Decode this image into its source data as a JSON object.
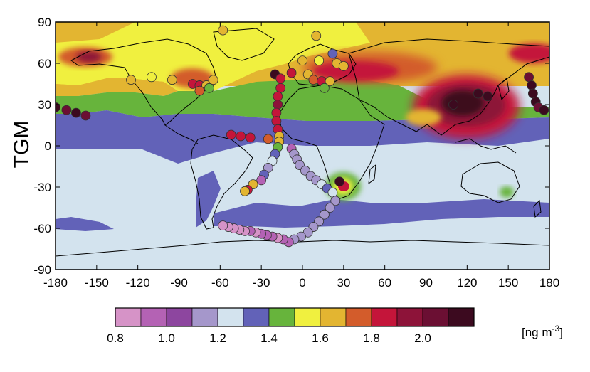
{
  "chart_data": {
    "type": "heatmap",
    "subtype": "global map of total gaseous mercury with observation overlay",
    "ylabel": "TGM",
    "units": "[ng m",
    "units_superscript": "-3",
    "units_suffix": "]",
    "xlim": [
      -180,
      180
    ],
    "ylim": [
      -90,
      90
    ],
    "x_ticks": [
      "-180",
      "-150",
      "-120",
      "-90",
      "-60",
      "-30",
      "0",
      "30",
      "60",
      "90",
      "120",
      "150",
      "180"
    ],
    "y_ticks": [
      "90",
      "60",
      "30",
      "0",
      "-30",
      "-60",
      "-90"
    ],
    "colorbar": {
      "min": 0.8,
      "step": 0.1,
      "colors": [
        "#d693c7",
        "#b462b4",
        "#8d469f",
        "#a597cb",
        "#d3e3ee",
        "#6262b8",
        "#67b43c",
        "#f0f03f",
        "#e3b531",
        "#d35c2b",
        "#c4153a",
        "#8d1339",
        "#6b0f33",
        "#3c0a1f"
      ],
      "tick_labels": [
        "0.8",
        "1.0",
        "1.2",
        "1.4",
        "1.6",
        "1.8",
        "2.0"
      ],
      "tick_values": [
        0.8,
        1.0,
        1.2,
        1.4,
        1.6,
        1.8,
        2.0
      ]
    },
    "observations": [
      {
        "lon": -58,
        "lat": 84,
        "v": 1.6
      },
      {
        "lon": 10,
        "lat": 80,
        "v": 1.6
      },
      {
        "lon": 22,
        "lat": 67,
        "v": 1.35
      },
      {
        "lon": 0,
        "lat": 62,
        "v": 1.65
      },
      {
        "lon": 12,
        "lat": 62,
        "v": 1.55
      },
      {
        "lon": 25,
        "lat": 60,
        "v": 1.7
      },
      {
        "lon": 30,
        "lat": 58,
        "v": 1.6
      },
      {
        "lon": -20,
        "lat": 52,
        "v": 2.15
      },
      {
        "lon": -8,
        "lat": 53,
        "v": 1.8
      },
      {
        "lon": 4,
        "lat": 52,
        "v": 1.7
      },
      {
        "lon": 8,
        "lat": 48,
        "v": 1.75
      },
      {
        "lon": 14,
        "lat": 47,
        "v": 1.9
      },
      {
        "lon": 20,
        "lat": 47,
        "v": 1.6
      },
      {
        "lon": 16,
        "lat": 42,
        "v": 1.5
      },
      {
        "lon": -125,
        "lat": 48,
        "v": 1.6
      },
      {
        "lon": -110,
        "lat": 50,
        "v": 1.55
      },
      {
        "lon": -95,
        "lat": 48,
        "v": 1.6
      },
      {
        "lon": -80,
        "lat": 45,
        "v": 1.85
      },
      {
        "lon": -75,
        "lat": 44,
        "v": 1.9
      },
      {
        "lon": -70,
        "lat": 44,
        "v": 1.7
      },
      {
        "lon": -65,
        "lat": 48,
        "v": 1.65
      },
      {
        "lon": -75,
        "lat": 40,
        "v": 1.75
      },
      {
        "lon": -68,
        "lat": 42,
        "v": 1.5
      },
      {
        "lon": -180,
        "lat": 28,
        "v": 2.1
      },
      {
        "lon": -172,
        "lat": 26,
        "v": 2.05
      },
      {
        "lon": -165,
        "lat": 24,
        "v": 2.1
      },
      {
        "lon": -158,
        "lat": 22,
        "v": 2.05
      },
      {
        "lon": -52,
        "lat": 8,
        "v": 1.9
      },
      {
        "lon": -45,
        "lat": 7,
        "v": 1.85
      },
      {
        "lon": -38,
        "lat": 6,
        "v": 1.8
      },
      {
        "lon": -25,
        "lat": 5,
        "v": 1.75
      },
      {
        "lon": -16,
        "lat": 49,
        "v": 1.9
      },
      {
        "lon": -16,
        "lat": 42,
        "v": 1.85
      },
      {
        "lon": -18,
        "lat": 36,
        "v": 1.9
      },
      {
        "lon": -18,
        "lat": 30,
        "v": 1.95
      },
      {
        "lon": -19,
        "lat": 24,
        "v": 1.9
      },
      {
        "lon": -19,
        "lat": 18,
        "v": 1.85
      },
      {
        "lon": -18,
        "lat": 12,
        "v": 1.8
      },
      {
        "lon": -17,
        "lat": 7,
        "v": 1.7
      },
      {
        "lon": -17,
        "lat": 3,
        "v": 1.6
      },
      {
        "lon": -18,
        "lat": -1,
        "v": 1.5
      },
      {
        "lon": -20,
        "lat": -6,
        "v": 1.4
      },
      {
        "lon": -22,
        "lat": -11,
        "v": 1.25
      },
      {
        "lon": -25,
        "lat": -16,
        "v": 1.15
      },
      {
        "lon": -28,
        "lat": -21,
        "v": 1.3
      },
      {
        "lon": -30,
        "lat": -25,
        "v": 1.0
      },
      {
        "lon": -36,
        "lat": -28,
        "v": 1.6
      },
      {
        "lon": -40,
        "lat": -32,
        "v": 1.8
      },
      {
        "lon": -42,
        "lat": -33,
        "v": 1.6
      },
      {
        "lon": -8,
        "lat": -2,
        "v": 1.0
      },
      {
        "lon": -6,
        "lat": -6,
        "v": 1.1
      },
      {
        "lon": -4,
        "lat": -10,
        "v": 1.2
      },
      {
        "lon": -2,
        "lat": -14,
        "v": 1.15
      },
      {
        "lon": 2,
        "lat": -18,
        "v": 1.2
      },
      {
        "lon": 6,
        "lat": -22,
        "v": 1.15
      },
      {
        "lon": 10,
        "lat": -25,
        "v": 1.2
      },
      {
        "lon": 14,
        "lat": -28,
        "v": 1.25
      },
      {
        "lon": 18,
        "lat": -31,
        "v": 1.3
      },
      {
        "lon": 22,
        "lat": -34,
        "v": 1.25
      },
      {
        "lon": 27,
        "lat": -26,
        "v": 2.1
      },
      {
        "lon": 24,
        "lat": -40,
        "v": 1.2
      },
      {
        "lon": 20,
        "lat": -45,
        "v": 1.15
      },
      {
        "lon": 16,
        "lat": -50,
        "v": 1.2
      },
      {
        "lon": 12,
        "lat": -55,
        "v": 1.15
      },
      {
        "lon": 8,
        "lat": -59,
        "v": 1.1
      },
      {
        "lon": 4,
        "lat": -63,
        "v": 1.15
      },
      {
        "lon": -1,
        "lat": -66,
        "v": 1.2
      },
      {
        "lon": -6,
        "lat": -68,
        "v": 1.15
      },
      {
        "lon": -10,
        "lat": -70,
        "v": 1.0
      },
      {
        "lon": -14,
        "lat": -68,
        "v": 0.95
      },
      {
        "lon": -18,
        "lat": -67,
        "v": 0.9
      },
      {
        "lon": -22,
        "lat": -66,
        "v": 1.0
      },
      {
        "lon": -26,
        "lat": -65,
        "v": 0.95
      },
      {
        "lon": -30,
        "lat": -64,
        "v": 1.0
      },
      {
        "lon": -34,
        "lat": -63,
        "v": 0.9
      },
      {
        "lon": -38,
        "lat": -62,
        "v": 0.95
      },
      {
        "lon": -42,
        "lat": -62,
        "v": 0.9
      },
      {
        "lon": -46,
        "lat": -61,
        "v": 0.85
      },
      {
        "lon": -50,
        "lat": -60,
        "v": 0.9
      },
      {
        "lon": -54,
        "lat": -59,
        "v": 0.85
      },
      {
        "lon": -58,
        "lat": -58,
        "v": 0.9
      },
      {
        "lon": 165,
        "lat": 50,
        "v": 2.05
      },
      {
        "lon": 167,
        "lat": 44,
        "v": 2.1
      },
      {
        "lon": 168,
        "lat": 38,
        "v": 2.15
      },
      {
        "lon": 170,
        "lat": 32,
        "v": 2.1
      },
      {
        "lon": 172,
        "lat": 28,
        "v": 2.05
      },
      {
        "lon": 176,
        "lat": 26,
        "v": 2.1
      },
      {
        "lon": 128,
        "lat": 38,
        "v": 2.15
      },
      {
        "lon": 135,
        "lat": 36,
        "v": 2.1
      },
      {
        "lon": 110,
        "lat": 30,
        "v": 2.2
      }
    ]
  }
}
